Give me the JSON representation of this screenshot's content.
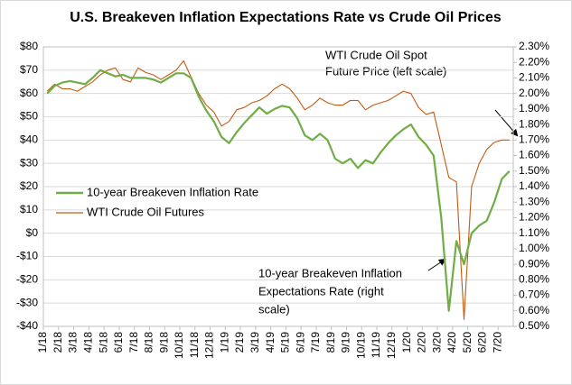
{
  "chart_data": {
    "type": "line",
    "title": "U.S. Breakeven Inflation Expectations Rate vs Crude Oil Prices",
    "categories": [
      "1/18",
      null,
      "2/18",
      null,
      "3/18",
      null,
      "4/18",
      null,
      "5/18",
      null,
      "6/18",
      null,
      "7/18",
      null,
      "8/18",
      null,
      "9/18",
      null,
      "10/18",
      null,
      "11/18",
      null,
      "12/18",
      null,
      "1/19",
      null,
      "2/19",
      null,
      "3/19",
      null,
      "4/19",
      null,
      "5/19",
      null,
      "6/19",
      null,
      "7/19",
      null,
      "8/19",
      null,
      "9/19",
      null,
      "10/19",
      null,
      "11/19",
      null,
      "12/19",
      null,
      "1/20",
      null,
      "2/20",
      null,
      "3/20",
      null,
      "4/20",
      null,
      "5/20",
      null,
      "6/20",
      null,
      "7/20",
      null
    ],
    "series": [
      {
        "name": "10-year Breakeven Inflation Rate",
        "color": "#70ad47",
        "axis": "y2",
        "values": [
          2.0,
          2.05,
          2.07,
          2.08,
          2.07,
          2.06,
          2.1,
          2.15,
          2.13,
          2.11,
          2.12,
          2.1,
          2.1,
          2.1,
          2.09,
          2.07,
          2.1,
          2.13,
          2.13,
          2.1,
          1.98,
          1.89,
          1.82,
          1.72,
          1.68,
          1.75,
          1.81,
          1.86,
          1.91,
          1.87,
          1.9,
          1.92,
          1.91,
          1.84,
          1.73,
          1.7,
          1.74,
          1.7,
          1.58,
          1.55,
          1.58,
          1.52,
          1.57,
          1.55,
          1.62,
          1.68,
          1.73,
          1.77,
          1.8,
          1.72,
          1.67,
          1.6,
          1.2,
          0.6,
          1.05,
          0.9,
          1.1,
          1.15,
          1.18,
          1.3,
          1.45,
          1.5
        ]
      },
      {
        "name": "WTI Crude Oil Futures",
        "color": "#c55a11",
        "values": [
          61,
          64,
          62,
          62,
          61,
          63,
          65,
          68,
          70,
          71,
          66,
          65,
          71,
          69,
          68,
          66,
          68,
          70,
          74,
          67,
          60,
          55,
          52,
          46,
          48,
          53,
          54,
          56,
          57,
          59,
          62,
          64,
          62,
          58,
          53,
          55,
          58,
          56,
          55,
          55,
          57,
          57,
          53,
          55,
          56,
          57,
          59,
          61,
          60,
          54,
          51,
          52,
          38,
          24,
          22,
          -37,
          20,
          30,
          36,
          39,
          40,
          40
        ]
      }
    ],
    "ylim": [
      -40,
      80
    ],
    "yticks": [
      {
        "value": 80,
        "label": "$80"
      },
      {
        "value": 70,
        "label": "$70"
      },
      {
        "value": 60,
        "label": "$60"
      },
      {
        "value": 50,
        "label": "$50"
      },
      {
        "value": 40,
        "label": "$40"
      },
      {
        "value": 30,
        "label": "$30"
      },
      {
        "value": 20,
        "label": "$20"
      },
      {
        "value": 10,
        "label": "$10"
      },
      {
        "value": 0,
        "label": "$0"
      },
      {
        "value": -10,
        "label": "-$10"
      },
      {
        "value": -20,
        "label": "-$20"
      },
      {
        "value": -30,
        "label": "-$30"
      },
      {
        "value": -40,
        "label": "-$40"
      }
    ],
    "y2lim": [
      0.5,
      2.3
    ],
    "y2ticks": [
      {
        "value": 2.3,
        "label": "2.30%"
      },
      {
        "value": 2.2,
        "label": "2.20%"
      },
      {
        "value": 2.1,
        "label": "2.10%"
      },
      {
        "value": 2.0,
        "label": "2.00%"
      },
      {
        "value": 1.9,
        "label": "1.90%"
      },
      {
        "value": 1.8,
        "label": "1.80%"
      },
      {
        "value": 1.7,
        "label": "1.70%"
      },
      {
        "value": 1.6,
        "label": "1.60%"
      },
      {
        "value": 1.5,
        "label": "1.50%"
      },
      {
        "value": 1.4,
        "label": "1.40%"
      },
      {
        "value": 1.3,
        "label": "1.30%"
      },
      {
        "value": 1.2,
        "label": "1.20%"
      },
      {
        "value": 1.1,
        "label": "1.10%"
      },
      {
        "value": 1.0,
        "label": "1.00%"
      },
      {
        "value": 0.9,
        "label": "0.90%"
      },
      {
        "value": 0.8,
        "label": "0.80%"
      },
      {
        "value": 0.7,
        "label": "0.70%"
      },
      {
        "value": 0.6,
        "label": "0.60%"
      },
      {
        "value": 0.5,
        "label": "0.50%"
      }
    ],
    "grid": true,
    "annotations": [
      [
        "WTI Crude Oil Spot",
        "Future  Price (left scale)"
      ],
      [
        "10-year Breakeven Inflation",
        "Expectations Rate (right",
        "scale)"
      ]
    ]
  }
}
